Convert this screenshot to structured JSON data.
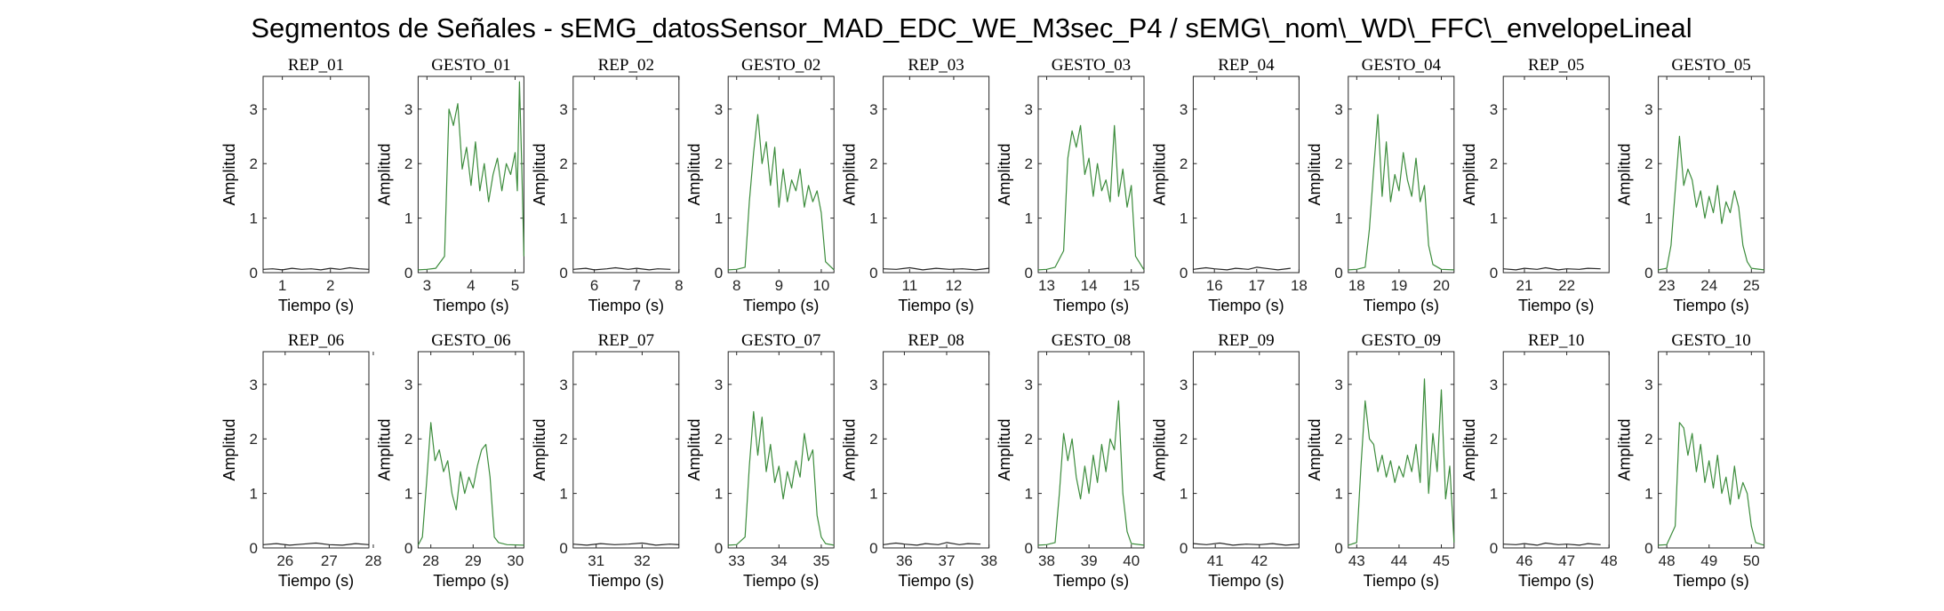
{
  "chart_data": {
    "type": "line",
    "title": "Segmentos de Señales - sEMG_datosSensor_MAD_EDC_WE_M3sec_P4 / sEMG\\_nom\\_WD\\_FFC\\_envelopeLineal",
    "xlabel": "Tiempo (s)",
    "ylabel": "Amplitud",
    "ylim": [
      0,
      3.6
    ],
    "yticks": [
      0,
      1,
      2,
      3
    ],
    "colors": {
      "rep": "#262626",
      "gesto": "#3c8c3c"
    },
    "panels": [
      {
        "title": "REP_01",
        "kind": "rep",
        "xlim": [
          0.6,
          2.8
        ],
        "xticks": [
          1,
          2
        ],
        "x": [
          0.6,
          0.8,
          1.0,
          1.2,
          1.4,
          1.6,
          1.8,
          2.0,
          2.2,
          2.4,
          2.6,
          2.8
        ],
        "y": [
          0.06,
          0.07,
          0.05,
          0.08,
          0.06,
          0.07,
          0.05,
          0.08,
          0.06,
          0.09,
          0.07,
          0.06
        ]
      },
      {
        "title": "GESTO_01",
        "kind": "gesto",
        "xlim": [
          2.8,
          5.2
        ],
        "xticks": [
          3,
          4,
          5
        ],
        "x": [
          2.8,
          3.0,
          3.2,
          3.4,
          3.5,
          3.6,
          3.7,
          3.8,
          3.9,
          4.0,
          4.1,
          4.2,
          4.3,
          4.4,
          4.5,
          4.6,
          4.7,
          4.8,
          4.9,
          5.0,
          5.05,
          5.1,
          5.15,
          5.2
        ],
        "y": [
          0.05,
          0.06,
          0.08,
          0.3,
          3.0,
          2.7,
          3.1,
          1.9,
          2.3,
          1.6,
          2.4,
          1.5,
          2.0,
          1.3,
          1.8,
          2.1,
          1.5,
          2.0,
          1.8,
          2.2,
          1.5,
          3.5,
          2.0,
          0.3
        ]
      },
      {
        "title": "REP_02",
        "kind": "rep",
        "xlim": [
          5.5,
          8.0
        ],
        "xticks": [
          6,
          7,
          8
        ],
        "x": [
          5.5,
          5.8,
          6.0,
          6.3,
          6.5,
          6.8,
          7.0,
          7.3,
          7.5,
          7.8
        ],
        "y": [
          0.06,
          0.08,
          0.05,
          0.07,
          0.09,
          0.06,
          0.08,
          0.05,
          0.07,
          0.06
        ]
      },
      {
        "title": "GESTO_02",
        "kind": "gesto",
        "xlim": [
          7.8,
          10.3
        ],
        "xticks": [
          8,
          9,
          10
        ],
        "x": [
          7.8,
          8.0,
          8.2,
          8.3,
          8.4,
          8.5,
          8.6,
          8.7,
          8.8,
          8.9,
          9.0,
          9.1,
          9.2,
          9.3,
          9.4,
          9.5,
          9.6,
          9.7,
          9.8,
          9.9,
          10.0,
          10.1,
          10.3
        ],
        "y": [
          0.05,
          0.06,
          0.1,
          1.3,
          2.2,
          2.9,
          2.0,
          2.4,
          1.6,
          2.3,
          1.2,
          1.9,
          1.3,
          1.7,
          1.5,
          1.9,
          1.2,
          1.6,
          1.3,
          1.5,
          1.1,
          0.2,
          0.05
        ]
      },
      {
        "title": "REP_03",
        "kind": "rep",
        "xlim": [
          10.4,
          12.8
        ],
        "xticks": [
          11,
          12
        ],
        "x": [
          10.4,
          10.7,
          11.0,
          11.3,
          11.6,
          11.9,
          12.2,
          12.5,
          12.8
        ],
        "y": [
          0.07,
          0.06,
          0.09,
          0.05,
          0.08,
          0.06,
          0.07,
          0.05,
          0.08
        ]
      },
      {
        "title": "GESTO_03",
        "kind": "gesto",
        "xlim": [
          12.8,
          15.3
        ],
        "xticks": [
          13,
          14,
          15
        ],
        "x": [
          12.8,
          13.0,
          13.2,
          13.4,
          13.5,
          13.6,
          13.7,
          13.8,
          13.9,
          14.0,
          14.1,
          14.2,
          14.3,
          14.4,
          14.5,
          14.6,
          14.7,
          14.8,
          14.9,
          15.0,
          15.1,
          15.3
        ],
        "y": [
          0.05,
          0.06,
          0.1,
          0.4,
          2.1,
          2.6,
          2.3,
          2.7,
          1.8,
          2.1,
          1.4,
          2.0,
          1.5,
          1.7,
          1.3,
          2.7,
          1.4,
          1.9,
          1.2,
          1.6,
          0.3,
          0.05
        ]
      },
      {
        "title": "REP_04",
        "kind": "rep",
        "xlim": [
          15.5,
          18.0
        ],
        "xticks": [
          16,
          17,
          18
        ],
        "x": [
          15.5,
          15.8,
          16.0,
          16.3,
          16.5,
          16.8,
          17.0,
          17.3,
          17.5,
          17.8
        ],
        "y": [
          0.06,
          0.09,
          0.07,
          0.05,
          0.08,
          0.06,
          0.1,
          0.07,
          0.05,
          0.08
        ]
      },
      {
        "title": "GESTO_04",
        "kind": "gesto",
        "xlim": [
          17.8,
          20.3
        ],
        "xticks": [
          18,
          19,
          20
        ],
        "x": [
          17.8,
          18.0,
          18.2,
          18.3,
          18.4,
          18.5,
          18.6,
          18.7,
          18.8,
          18.9,
          19.0,
          19.1,
          19.2,
          19.3,
          19.4,
          19.5,
          19.6,
          19.7,
          19.8,
          20.0,
          20.3
        ],
        "y": [
          0.05,
          0.06,
          0.1,
          0.8,
          1.9,
          2.9,
          1.4,
          2.4,
          1.3,
          1.8,
          1.5,
          2.2,
          1.7,
          1.4,
          2.1,
          1.3,
          1.6,
          0.5,
          0.15,
          0.06,
          0.05
        ]
      },
      {
        "title": "REP_05",
        "kind": "rep",
        "xlim": [
          20.5,
          23.0
        ],
        "xticks": [
          21,
          22
        ],
        "x": [
          20.5,
          20.8,
          21.0,
          21.3,
          21.5,
          21.8,
          22.0,
          22.3,
          22.5,
          22.8
        ],
        "y": [
          0.07,
          0.05,
          0.08,
          0.06,
          0.09,
          0.05,
          0.07,
          0.06,
          0.08,
          0.07
        ]
      },
      {
        "title": "GESTO_05",
        "kind": "gesto",
        "xlim": [
          22.8,
          25.3
        ],
        "xticks": [
          23,
          24,
          25
        ],
        "x": [
          22.8,
          23.0,
          23.1,
          23.2,
          23.3,
          23.4,
          23.5,
          23.6,
          23.7,
          23.8,
          23.9,
          24.0,
          24.1,
          24.2,
          24.3,
          24.4,
          24.5,
          24.6,
          24.7,
          24.8,
          24.9,
          25.0,
          25.3
        ],
        "y": [
          0.05,
          0.08,
          0.5,
          1.5,
          2.5,
          1.6,
          1.9,
          1.7,
          1.2,
          1.5,
          1.0,
          1.4,
          1.1,
          1.6,
          0.9,
          1.3,
          1.1,
          1.5,
          1.2,
          0.5,
          0.2,
          0.08,
          0.05
        ]
      },
      {
        "title": "REP_06",
        "kind": "rep",
        "xlim": [
          25.5,
          27.9
        ],
        "xticks": [
          26,
          27,
          28
        ],
        "x": [
          25.5,
          25.8,
          26.1,
          26.4,
          26.7,
          27.0,
          27.3,
          27.6,
          27.9
        ],
        "y": [
          0.06,
          0.08,
          0.05,
          0.07,
          0.09,
          0.06,
          0.05,
          0.08,
          0.06
        ]
      },
      {
        "title": "GESTO_06",
        "kind": "gesto",
        "xlim": [
          27.7,
          30.2
        ],
        "xticks": [
          28,
          29,
          30
        ],
        "x": [
          27.7,
          27.8,
          27.9,
          28.0,
          28.1,
          28.2,
          28.3,
          28.4,
          28.5,
          28.6,
          28.7,
          28.8,
          28.9,
          29.0,
          29.1,
          29.2,
          29.3,
          29.4,
          29.5,
          29.6,
          29.8,
          30.2
        ],
        "y": [
          0.05,
          0.2,
          1.2,
          2.3,
          1.6,
          1.8,
          1.4,
          1.6,
          1.0,
          0.7,
          1.4,
          1.0,
          1.3,
          1.1,
          1.5,
          1.8,
          1.9,
          1.3,
          0.2,
          0.1,
          0.06,
          0.05
        ]
      },
      {
        "title": "REP_07",
        "kind": "rep",
        "xlim": [
          30.5,
          32.8
        ],
        "xticks": [
          31,
          32
        ],
        "x": [
          30.5,
          30.8,
          31.1,
          31.4,
          31.7,
          32.0,
          32.3,
          32.6,
          32.8
        ],
        "y": [
          0.07,
          0.05,
          0.08,
          0.06,
          0.07,
          0.09,
          0.05,
          0.07,
          0.06
        ]
      },
      {
        "title": "GESTO_07",
        "kind": "gesto",
        "xlim": [
          32.8,
          35.3
        ],
        "xticks": [
          33,
          34,
          35
        ],
        "x": [
          32.8,
          33.0,
          33.2,
          33.3,
          33.4,
          33.5,
          33.6,
          33.7,
          33.8,
          33.9,
          34.0,
          34.1,
          34.2,
          34.3,
          34.4,
          34.5,
          34.6,
          34.7,
          34.8,
          34.9,
          35.0,
          35.1,
          35.3
        ],
        "y": [
          0.05,
          0.06,
          0.2,
          1.5,
          2.5,
          1.7,
          2.4,
          1.4,
          1.9,
          1.2,
          1.5,
          0.9,
          1.4,
          1.1,
          1.6,
          1.3,
          2.1,
          1.6,
          1.8,
          0.6,
          0.2,
          0.08,
          0.05
        ]
      },
      {
        "title": "REP_08",
        "kind": "rep",
        "xlim": [
          35.5,
          38.0
        ],
        "xticks": [
          36,
          37,
          38
        ],
        "x": [
          35.5,
          35.8,
          36.0,
          36.3,
          36.5,
          36.8,
          37.0,
          37.3,
          37.5,
          37.8
        ],
        "y": [
          0.06,
          0.09,
          0.07,
          0.05,
          0.08,
          0.06,
          0.1,
          0.06,
          0.08,
          0.07
        ]
      },
      {
        "title": "GESTO_08",
        "kind": "gesto",
        "xlim": [
          37.8,
          40.3
        ],
        "xticks": [
          38,
          39,
          40
        ],
        "x": [
          37.8,
          38.0,
          38.2,
          38.3,
          38.4,
          38.5,
          38.6,
          38.7,
          38.8,
          38.9,
          39.0,
          39.1,
          39.2,
          39.3,
          39.4,
          39.5,
          39.6,
          39.7,
          39.8,
          39.9,
          40.0,
          40.3
        ],
        "y": [
          0.05,
          0.06,
          0.1,
          1.0,
          2.1,
          1.6,
          2.0,
          1.3,
          0.9,
          1.5,
          1.0,
          1.7,
          1.2,
          1.9,
          1.4,
          2.0,
          1.8,
          2.7,
          1.0,
          0.3,
          0.08,
          0.05
        ]
      },
      {
        "title": "REP_09",
        "kind": "rep",
        "xlim": [
          40.5,
          42.9
        ],
        "xticks": [
          41,
          42
        ],
        "x": [
          40.5,
          40.8,
          41.1,
          41.4,
          41.7,
          42.0,
          42.3,
          42.6,
          42.9
        ],
        "y": [
          0.08,
          0.06,
          0.09,
          0.05,
          0.07,
          0.06,
          0.08,
          0.05,
          0.07
        ]
      },
      {
        "title": "GESTO_09",
        "kind": "gesto",
        "xlim": [
          42.8,
          45.3
        ],
        "xticks": [
          43,
          44,
          45
        ],
        "x": [
          42.8,
          43.0,
          43.1,
          43.2,
          43.3,
          43.4,
          43.5,
          43.6,
          43.7,
          43.8,
          43.9,
          44.0,
          44.1,
          44.2,
          44.3,
          44.4,
          44.5,
          44.6,
          44.7,
          44.8,
          44.9,
          45.0,
          45.1,
          45.2,
          45.3
        ],
        "y": [
          0.05,
          0.1,
          1.5,
          2.7,
          2.0,
          1.9,
          1.4,
          1.7,
          1.3,
          1.6,
          1.2,
          1.5,
          1.3,
          1.7,
          1.4,
          1.9,
          1.2,
          3.1,
          1.0,
          2.1,
          1.4,
          2.9,
          0.9,
          1.5,
          0.1
        ]
      },
      {
        "title": "REP_10",
        "kind": "rep",
        "xlim": [
          45.5,
          48.0
        ],
        "xticks": [
          46,
          47,
          48
        ],
        "x": [
          45.5,
          45.8,
          46.0,
          46.3,
          46.5,
          46.8,
          47.0,
          47.3,
          47.5,
          47.8
        ],
        "y": [
          0.07,
          0.06,
          0.08,
          0.05,
          0.09,
          0.06,
          0.07,
          0.05,
          0.08,
          0.06
        ]
      },
      {
        "title": "GESTO_10",
        "kind": "gesto",
        "xlim": [
          47.8,
          50.3
        ],
        "xticks": [
          48,
          49,
          50
        ],
        "x": [
          47.8,
          48.0,
          48.2,
          48.3,
          48.4,
          48.5,
          48.6,
          48.7,
          48.8,
          48.9,
          49.0,
          49.1,
          49.2,
          49.3,
          49.4,
          49.5,
          49.6,
          49.7,
          49.8,
          49.9,
          50.0,
          50.1,
          50.3
        ],
        "y": [
          0.05,
          0.06,
          0.4,
          2.3,
          2.2,
          1.7,
          2.1,
          1.4,
          1.9,
          1.2,
          1.6,
          1.1,
          1.7,
          1.0,
          1.3,
          0.8,
          1.5,
          0.9,
          1.2,
          1.0,
          0.4,
          0.1,
          0.05
        ]
      }
    ]
  }
}
